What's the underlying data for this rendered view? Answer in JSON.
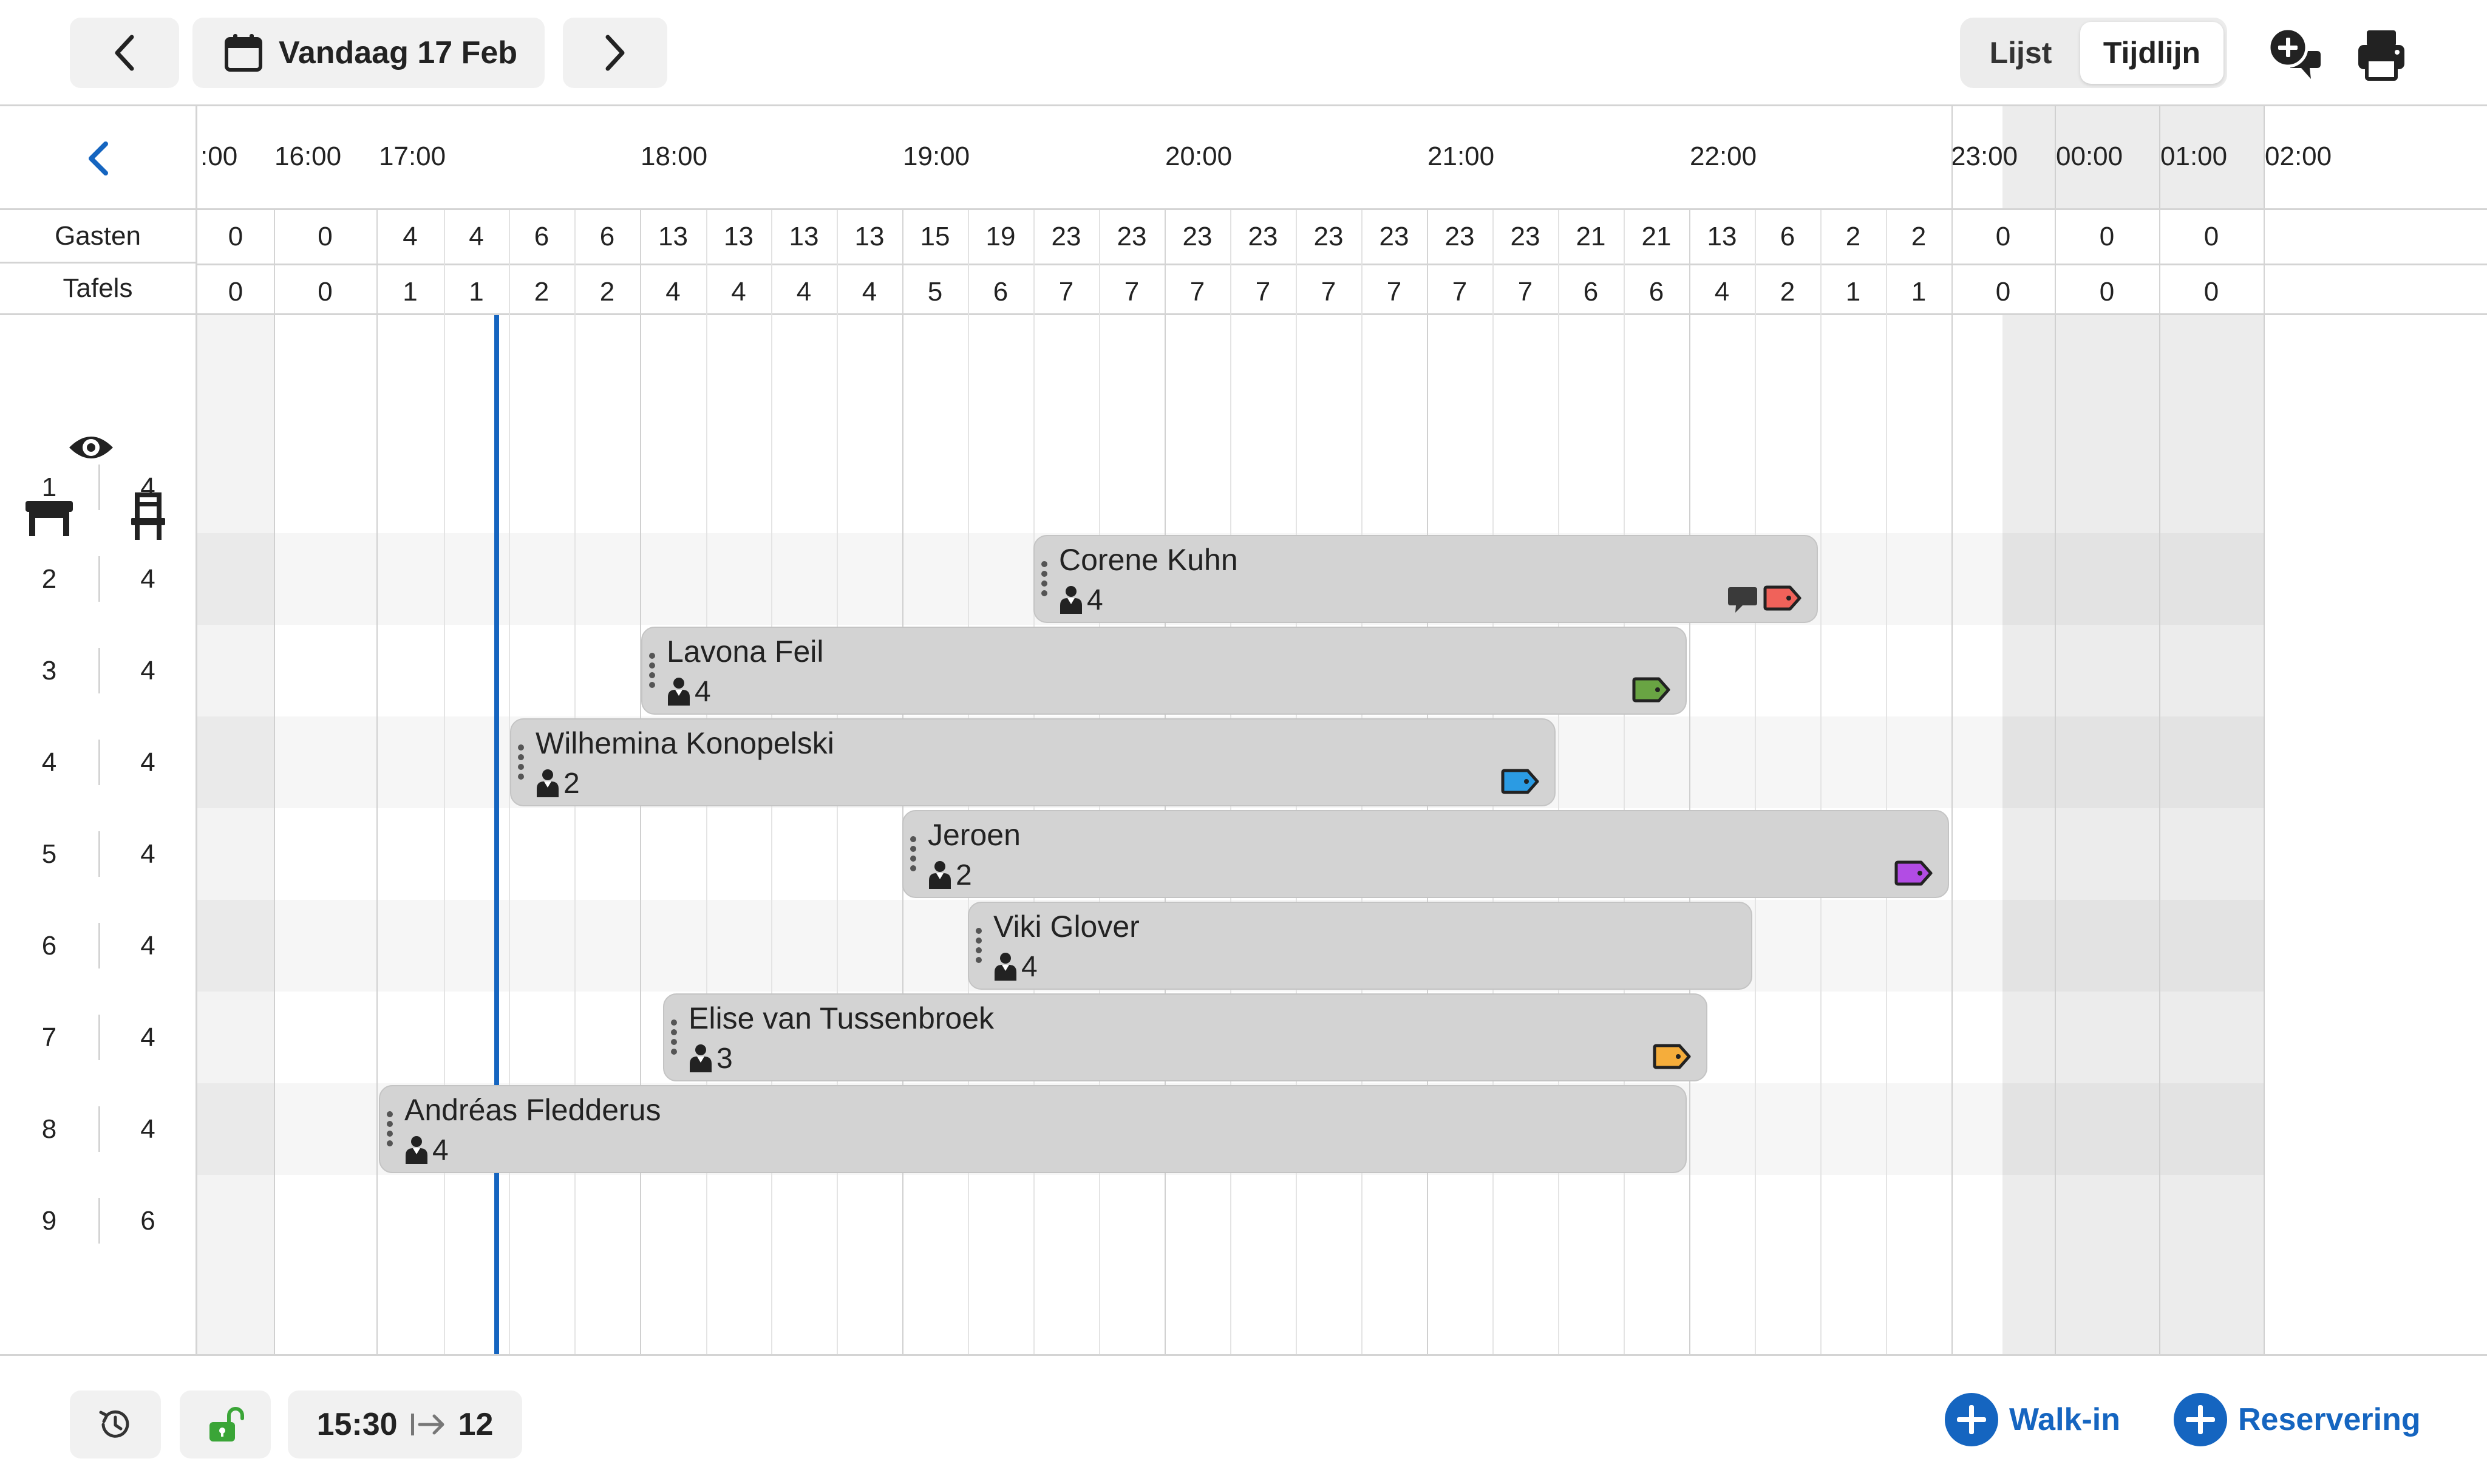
{
  "toolbar": {
    "date_label": "Vandaag 17 Feb",
    "view_list_label": "Lijst",
    "view_timeline_label": "Tijdlijn",
    "icons": [
      "chevron-left-icon",
      "calendar-icon",
      "chevron-right-icon",
      "add-comment-icon",
      "printer-icon"
    ]
  },
  "stats": {
    "guests_label": "Gasten",
    "tables_label": "Tafels",
    "guests": [
      "0",
      "0",
      "4",
      "4",
      "6",
      "6",
      "13",
      "13",
      "13",
      "13",
      "15",
      "19",
      "23",
      "23",
      "23",
      "23",
      "23",
      "23",
      "23",
      "23",
      "21",
      "21",
      "13",
      "6",
      "2",
      "2",
      "0",
      "0",
      "0"
    ],
    "tables": [
      "0",
      "0",
      "1",
      "1",
      "2",
      "2",
      "4",
      "4",
      "4",
      "4",
      "5",
      "6",
      "7",
      "7",
      "7",
      "7",
      "7",
      "7",
      "7",
      "7",
      "6",
      "6",
      "4",
      "2",
      "1",
      "1",
      "0",
      "0",
      "0"
    ]
  },
  "time_labels": [
    ":00",
    "16:00",
    "17:00",
    "18:00",
    "19:00",
    "20:00",
    "21:00",
    "22:00",
    "23:00",
    "00:00",
    "01:00",
    "02:00"
  ],
  "tables": [
    {
      "number": "1",
      "capacity": "4"
    },
    {
      "number": "2",
      "capacity": "4"
    },
    {
      "number": "3",
      "capacity": "4"
    },
    {
      "number": "4",
      "capacity": "4"
    },
    {
      "number": "5",
      "capacity": "4"
    },
    {
      "number": "6",
      "capacity": "4"
    },
    {
      "number": "7",
      "capacity": "4"
    },
    {
      "number": "8",
      "capacity": "4"
    },
    {
      "number": "9",
      "capacity": "6"
    }
  ],
  "reservations": [
    {
      "name": "Corene Kuhn",
      "party": "4",
      "table": "2",
      "tag_color": "#f0625a",
      "comment": true
    },
    {
      "name": "Lavona Feil",
      "party": "4",
      "table": "3",
      "tag_color": "#69a443"
    },
    {
      "name": "Wilhemina Konopelski",
      "party": "2",
      "table": "4",
      "tag_color": "#2b9be3"
    },
    {
      "name": "Jeroen",
      "party": "2",
      "table": "5",
      "tag_color": "#b24ce4"
    },
    {
      "name": "Viki Glover",
      "party": "4",
      "table": "6"
    },
    {
      "name": "Elise van Tussenbroek",
      "party": "3",
      "table": "7",
      "tag_color": "#f5ad3b"
    },
    {
      "name": "Andréas Fledderus",
      "party": "4",
      "table": "8"
    }
  ],
  "footer": {
    "time": "15:30",
    "count": "12",
    "walkin_label": "Walk-in",
    "reservation_label": "Reservering",
    "icons": [
      "history-icon",
      "unlocked-icon",
      "arrow-right-bar-icon",
      "plus-circle-icon"
    ]
  },
  "colors": {
    "accent": "#1565c0",
    "unlocked": "#3aa537",
    "reservation_block": "#d3d3d3",
    "closed_hours": "#ececec"
  }
}
